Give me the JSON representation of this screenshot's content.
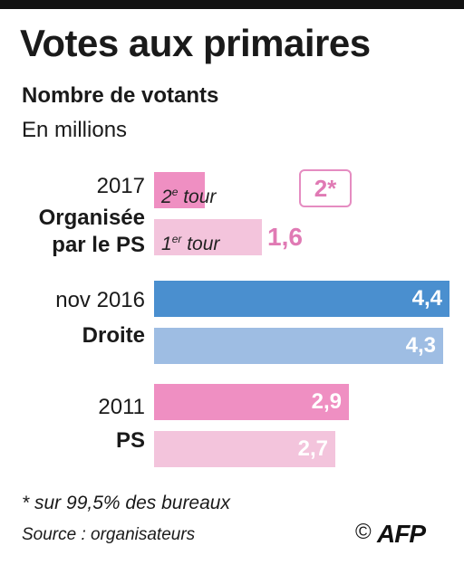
{
  "header": {
    "title": "Votes aux primaires",
    "subtitle": "Nombre de votants",
    "unit": "En millions"
  },
  "groups": [
    {
      "year": "2017",
      "name_lines": [
        "Organisée",
        "par le PS"
      ]
    },
    {
      "year": "nov 2016",
      "name_lines": [
        "Droite"
      ]
    },
    {
      "year": "2011",
      "name_lines": [
        "PS"
      ]
    }
  ],
  "bar_labels": {
    "second_round_main": "2",
    "second_round_sup": "e",
    "second_round_rest": " tour",
    "first_round_main": "1",
    "first_round_sup": "er",
    "first_round_rest": " tour"
  },
  "badge": "2*",
  "chart_data": {
    "type": "bar",
    "orientation": "horizontal",
    "title": "Votes aux primaires",
    "subtitle": "Nombre de votants",
    "unit": "En millions",
    "categories": [
      "2017 Organisée par le PS",
      "nov 2016 Droite",
      "2011 PS"
    ],
    "bars": [
      {
        "group": "2017 Organisée par le PS",
        "round": "2e tour",
        "value": null,
        "label": "2*",
        "color": "#ef8fc2"
      },
      {
        "group": "2017 Organisée par le PS",
        "round": "1er tour",
        "value": 1.6,
        "label": "1,6",
        "color": "#f3c4dc"
      },
      {
        "group": "nov 2016 Droite",
        "round": "2e tour",
        "value": 4.4,
        "label": "4,4",
        "color": "#4a8fcf"
      },
      {
        "group": "nov 2016 Droite",
        "round": "1er tour",
        "value": 4.3,
        "label": "4,3",
        "color": "#9ebde3"
      },
      {
        "group": "2011 PS",
        "round": "2e tour",
        "value": 2.9,
        "label": "2,9",
        "color": "#ef8fc2"
      },
      {
        "group": "2011 PS",
        "round": "1er tour",
        "value": 2.7,
        "label": "2,7",
        "color": "#f3c4dc"
      }
    ],
    "placeholder_value_2017_second_round": 0.75,
    "xlim": [
      0,
      4.4
    ]
  },
  "footer": {
    "note": "* sur 99,5% des bureaux",
    "source": "Source : organisateurs",
    "copyright": "©",
    "logo": "AFP"
  }
}
